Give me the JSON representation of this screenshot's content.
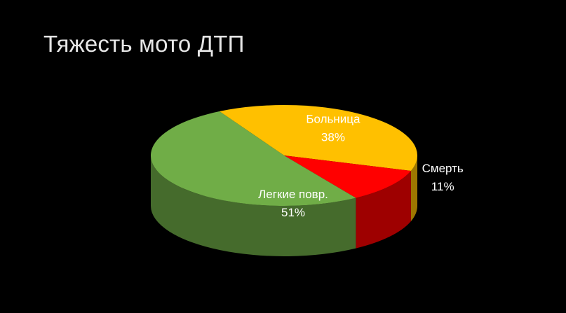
{
  "slide": {
    "title": "Тяжесть мото ДТП"
  },
  "colors": {
    "background": "#000000",
    "title": "#e6e6e6",
    "label_on_slice": "#ffffff",
    "label_outside": "#ffffff"
  },
  "chart_data": {
    "type": "pie",
    "style": "3d",
    "title": "",
    "slices": [
      {
        "label": "Больница",
        "value": 38,
        "value_label": "38%",
        "color": "#ffc000",
        "label_position": "inside"
      },
      {
        "label": "Смерть",
        "value": 11,
        "value_label": "11%",
        "color": "#ff0000",
        "label_position": "outside"
      },
      {
        "label": "Легкие повр.",
        "value": 51,
        "value_label": "51%",
        "color": "#70ad47",
        "label_position": "inside"
      }
    ],
    "legend": "none"
  }
}
